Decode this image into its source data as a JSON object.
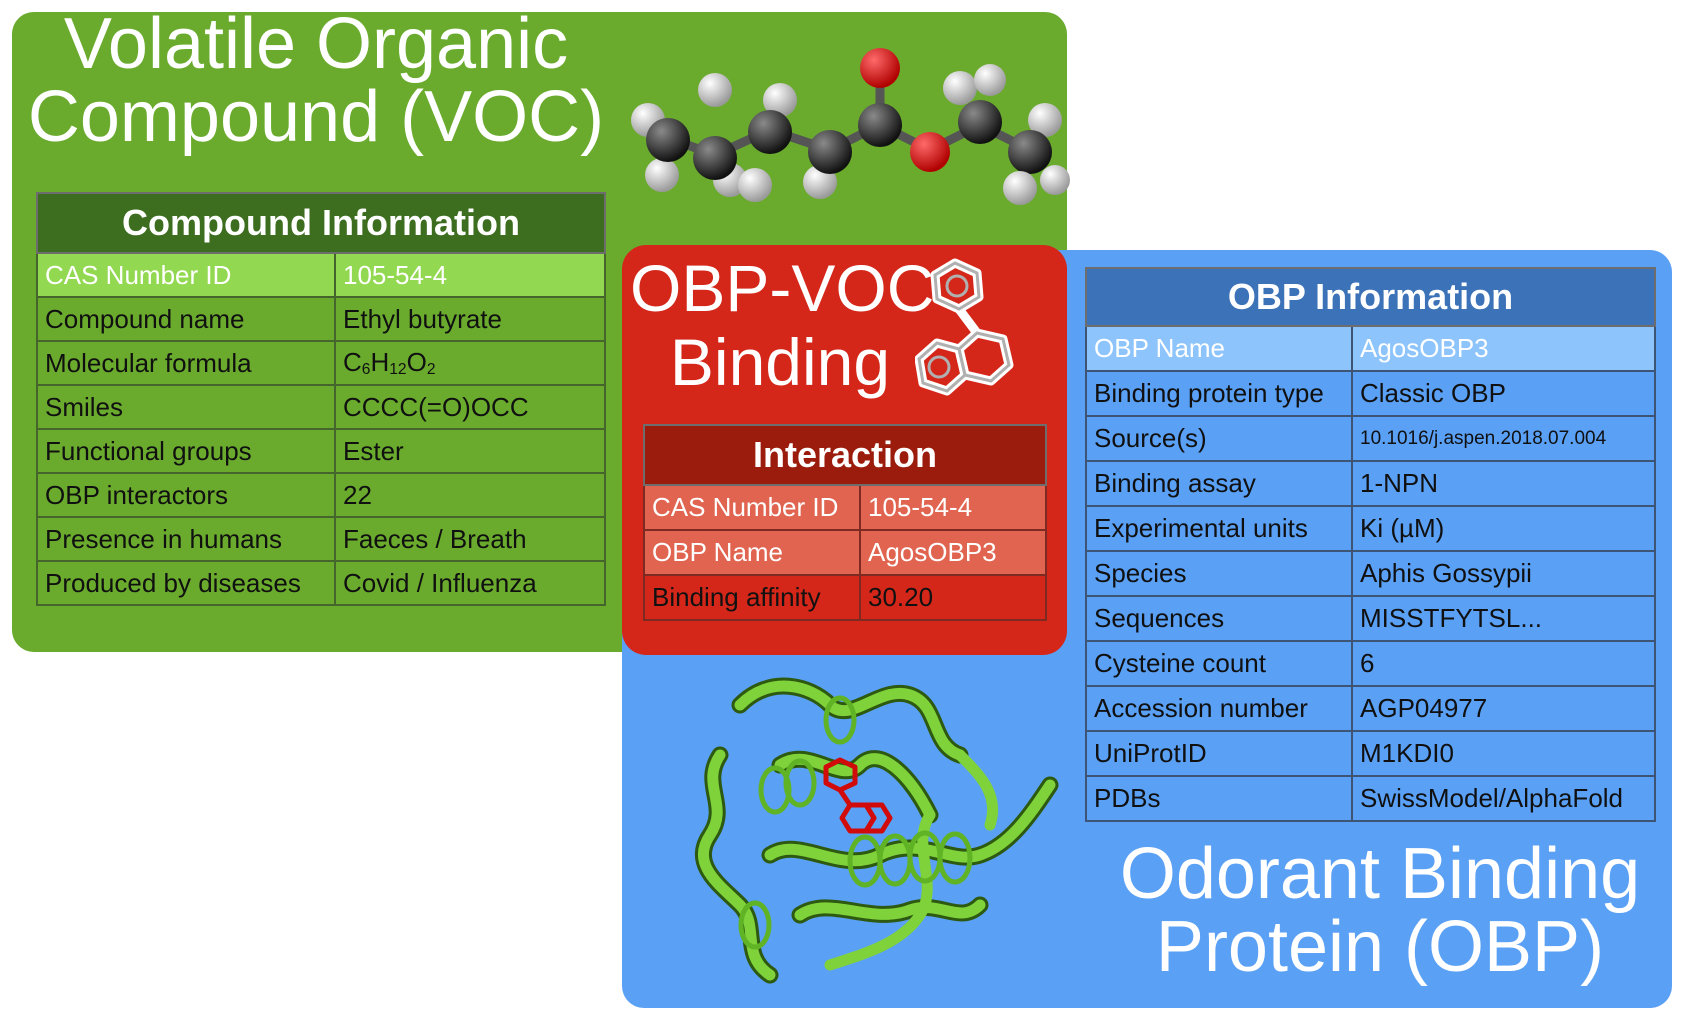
{
  "voc_panel": {
    "title_line1": "Volatile Organic",
    "title_line2": "Compound (VOC)",
    "molecule_icon": "ethyl-butyrate-ball-and-stick-icon",
    "table": {
      "header": "Compound Information",
      "rows": [
        {
          "key": "CAS Number ID",
          "value": "105-54-4"
        },
        {
          "key": "Compound name",
          "value": "Ethyl butyrate"
        },
        {
          "key": "Molecular formula",
          "value": "C6H12O2"
        },
        {
          "key": "Smiles",
          "value": "CCCC(=O)OCC"
        },
        {
          "key": "Functional groups",
          "value": "Ester"
        },
        {
          "key": "OBP interactors",
          "value": "22"
        },
        {
          "key": "Presence in humans",
          "value": "Faeces / Breath"
        },
        {
          "key": "Produced by diseases",
          "value": "Covid / Influenza"
        }
      ]
    },
    "colors": {
      "panel": "#6aab2e",
      "header": "#3d6d1f",
      "highlight": "#92d850"
    }
  },
  "binding_panel": {
    "title_line1": "OBP-VOC",
    "title_line2": "Binding",
    "ligand_icon": "ligand-rings-icon",
    "table": {
      "header": "Interaction",
      "rows": [
        {
          "key": "CAS Number ID",
          "value": "105-54-4"
        },
        {
          "key": "OBP Name",
          "value": "AgosOBP3"
        },
        {
          "key": "Binding affinity",
          "value": "30.20"
        }
      ]
    },
    "colors": {
      "panel": "#d4271a",
      "header": "#9b1c0c",
      "highlight": "#e0644f"
    }
  },
  "obp_panel": {
    "title_line1": "Odorant Binding",
    "title_line2": "Protein (OBP)",
    "protein_icon": "protein-ribbon-icon",
    "table": {
      "header": "OBP Information",
      "rows": [
        {
          "key": "OBP Name",
          "value": "AgosOBP3"
        },
        {
          "key": "Binding protein type",
          "value": "Classic OBP"
        },
        {
          "key": "Source(s)",
          "value": "10.1016/j.aspen.2018.07.004"
        },
        {
          "key": "Binding assay",
          "value": "1-NPN"
        },
        {
          "key": "Experimental units",
          "value": "Ki (µM)"
        },
        {
          "key": "Species",
          "value": "Aphis Gossypii"
        },
        {
          "key": "Sequences",
          "value": "MISSTFYTSL..."
        },
        {
          "key": "Cysteine count",
          "value": "6"
        },
        {
          "key": "Accession number",
          "value": "AGP04977"
        },
        {
          "key": "UniProtID",
          "value": "M1KDI0"
        },
        {
          "key": "PDBs",
          "value": "SwissModel/AlphaFold"
        }
      ]
    },
    "colors": {
      "panel": "#5aa0f5",
      "header": "#3c72b8",
      "highlight": "#8dc4fb"
    }
  }
}
